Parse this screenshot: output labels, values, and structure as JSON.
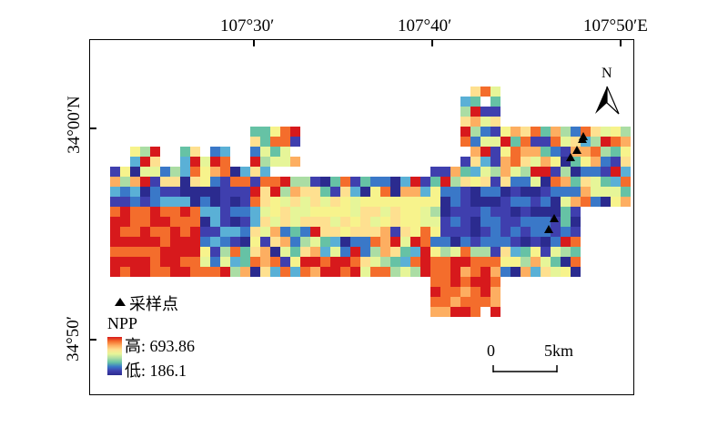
{
  "map": {
    "top_ticks": [
      "107°30′",
      "107°40′",
      "107°50′E"
    ],
    "left_ticks": [
      "34°00′N",
      "34°50′"
    ],
    "north_label": "N",
    "legend": {
      "sample_label": "采样点",
      "npp_title": "NPP",
      "high_label": "高: 693.86",
      "low_label": "低: 186.1"
    },
    "scale_bar": {
      "start_label": "0",
      "end_label": "5km"
    },
    "colors": {
      "high": "#d7191c",
      "mid": "#f7f38c",
      "low": "#3a3aa8",
      "marker": "#000000"
    }
  }
}
